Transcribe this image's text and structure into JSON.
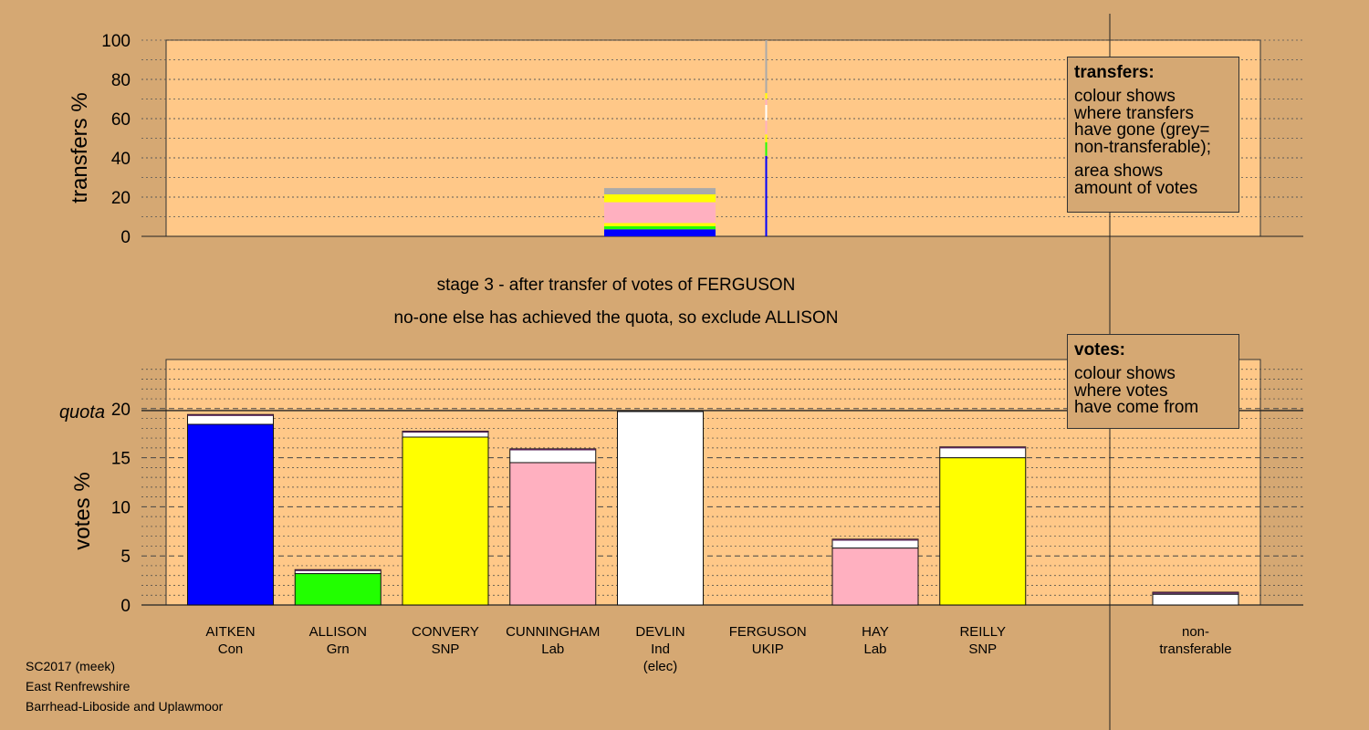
{
  "chart_data": {
    "type": "bar",
    "stage_title": "stage 3 - after transfer of votes of FERGUSON",
    "stage_subtitle": "no-one else has achieved the quota, so exclude ALLISON",
    "colors": {
      "Con": "#0000ff",
      "Grn": "#22ff00",
      "SNP": "#ffff00",
      "Lab": "#ffb0c0",
      "Ind": "#ffffff",
      "nontransferable": "#aaaaaa",
      "plot_bg": "#ffc888",
      "page_bg": "#d5a873"
    },
    "transfers_chart": {
      "ylabel": "transfers %",
      "ylim": [
        0,
        100
      ],
      "yticks": [
        0,
        20,
        40,
        60,
        80,
        100
      ],
      "transferring_candidate": "FERGUSON",
      "stacked_bar": [
        {
          "to": "AITKEN",
          "party": "Con",
          "value": 3.6
        },
        {
          "to": "ALLISON",
          "party": "Grn",
          "value": 1.6
        },
        {
          "to": "CONVERY",
          "party": "SNP",
          "value": 1.6
        },
        {
          "to": "CUNNINGHAM",
          "party": "Lab",
          "value": 6.7
        },
        {
          "to": "HAY",
          "party": "Lab",
          "value": 3.9
        },
        {
          "to": "REILLY",
          "party": "SNP",
          "value": 4.0
        },
        {
          "to": "non-transferable",
          "party": "nontransferable",
          "value": 3.2
        }
      ],
      "thin_bar": [
        {
          "party": "Con",
          "value": 41
        },
        {
          "party": "Grn",
          "value": 7
        },
        {
          "party": "SNP",
          "value": 4
        },
        {
          "party": "Lab",
          "value": 7
        },
        {
          "party": "Ind",
          "value": 8
        },
        {
          "party": "Lab",
          "value": 3
        },
        {
          "party": "SNP",
          "value": 3
        },
        {
          "party": "nontransferable",
          "value": 27
        }
      ]
    },
    "votes_chart": {
      "ylabel": "votes %",
      "ylim": [
        0,
        25
      ],
      "yticks": [
        0,
        5,
        10,
        15,
        20
      ],
      "quota_label": "quota",
      "quota": 19.8,
      "categories": [
        {
          "name": "AITKEN",
          "party": "Con",
          "sub": "",
          "first": 18.4,
          "transfers": 1.0
        },
        {
          "name": "ALLISON",
          "party": "Grn",
          "sub": "",
          "first": 3.2,
          "transfers": 0.4
        },
        {
          "name": "CONVERY",
          "party": "SNP",
          "sub": "",
          "first": 17.1,
          "transfers": 0.6
        },
        {
          "name": "CUNNINGHAM",
          "party": "Lab",
          "sub": "",
          "first": 14.5,
          "transfers": 1.4
        },
        {
          "name": "DEVLIN",
          "party": "Ind",
          "sub": "(elec)",
          "first": 19.7,
          "transfers": 0
        },
        {
          "name": "FERGUSON",
          "party": "UKIP",
          "sub": "",
          "first": 0,
          "transfers": 0
        },
        {
          "name": "HAY",
          "party": "Lab",
          "sub": "",
          "first": 5.8,
          "transfers": 0.9
        },
        {
          "name": "REILLY",
          "party": "SNP",
          "sub": "",
          "first": 15.0,
          "transfers": 1.1
        },
        {
          "name": "non-",
          "party": "transferable",
          "sub": "",
          "first": 1.1,
          "transfers": 0.2,
          "nontransferable": true
        }
      ]
    }
  },
  "legend_transfers": {
    "title": "transfers:",
    "lines1": [
      "colour shows",
      "where transfers",
      "have gone (grey=",
      "non-transferable);"
    ],
    "lines2": [
      "area shows",
      "amount of votes"
    ]
  },
  "legend_votes": {
    "title": "votes:",
    "lines": [
      "colour shows",
      "where votes",
      "have come from"
    ]
  },
  "footer": {
    "line1": "SC2017 (meek)",
    "line2": "East Renfrewshire",
    "line3": "Barrhead-Liboside and Uplawmoor"
  }
}
